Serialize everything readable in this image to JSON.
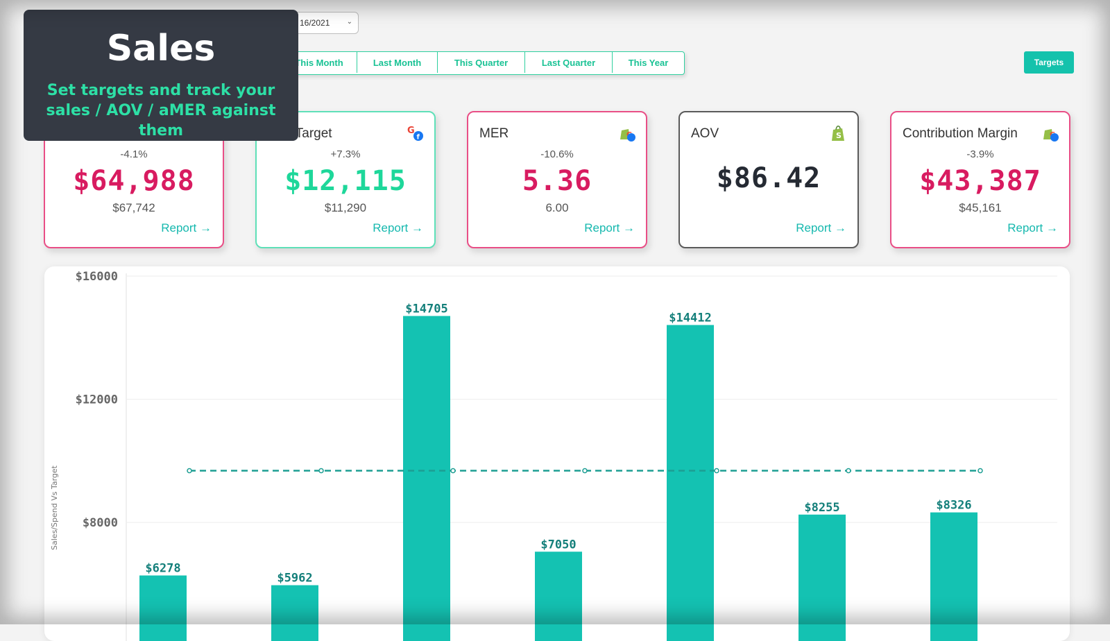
{
  "banner": {
    "title": "Sales",
    "subtitle": "Set targets and track your sales / AOV / aMER against them"
  },
  "date_range": {
    "value": "16/2021"
  },
  "date_tabs": [
    {
      "label": "This Month"
    },
    {
      "label": "Last Month"
    },
    {
      "label": "This Quarter"
    },
    {
      "label": "Last Quarter"
    },
    {
      "label": "This Year"
    }
  ],
  "targets_button": {
    "label": "Targets"
  },
  "cards": [
    {
      "title": "",
      "change": "-4.1%",
      "value": "$64,988",
      "target": "$67,742",
      "report": "Report →",
      "icon": "none"
    },
    {
      "title": "d vs Target",
      "change": "+7.3%",
      "value": "$12,115",
      "target": "$11,290",
      "report": "Report →",
      "icon": "google-facebook-icon"
    },
    {
      "title": "MER",
      "change": "-10.6%",
      "value": "5.36",
      "target": "6.00",
      "report": "Report →",
      "icon": "shopify-google-facebook-icon"
    },
    {
      "title": "AOV",
      "change": "",
      "value": "$86.42",
      "target": "",
      "report": "Report →",
      "icon": "shopify-icon"
    },
    {
      "title": "Contribution Margin",
      "change": "-3.9%",
      "value": "$43,387",
      "target": "$45,161",
      "report": "Report →",
      "icon": "shopify-google-facebook-icon"
    }
  ],
  "colors": {
    "accent": "#14c2ac",
    "negative": "#d81b60",
    "positive": "#1ed79a",
    "bar": "#14c2b2",
    "target_line": "#1d9e93"
  },
  "chart_data": {
    "type": "bar",
    "ylabel": "Sales/Spend Vs Target",
    "y_ticks": [
      8000,
      12000,
      16000
    ],
    "y_tick_labels": [
      "$8000",
      "$12000",
      "$16000"
    ],
    "ylim": [
      4600,
      16000
    ],
    "values": [
      6278,
      5962,
      14705,
      7050,
      14412,
      8255,
      8326
    ],
    "value_labels": [
      "$6278",
      "$5962",
      "$14705",
      "$7050",
      "$14412",
      "$8255",
      "$8326"
    ],
    "target_value": 9680,
    "grid": true,
    "legend": "none"
  }
}
